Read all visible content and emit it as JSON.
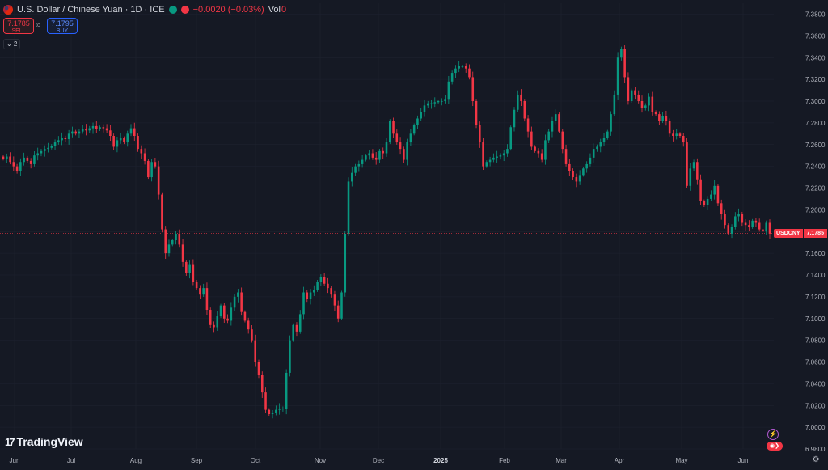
{
  "header": {
    "symbol_title": "U.S. Dollar / Chinese Yuan · 1D · ICE",
    "change": "−0.0020 (−0.03%)",
    "vol_label": "Vol",
    "vol_value": "0"
  },
  "trade": {
    "sell_price": "7.1785",
    "sell_label": "SELL",
    "spread": "to",
    "buy_price": "7.1795",
    "buy_label": "BUY"
  },
  "collapse_label": "⌄ 2",
  "logo": {
    "mark": "17",
    "text": "TradingView"
  },
  "current": {
    "symbol": "USDCNY",
    "price": "7.1785",
    "value": 7.1785
  },
  "icons": {
    "lightning": "lightning-icon",
    "replay": "replay-icon",
    "settings": "gear-icon"
  },
  "colors": {
    "up": "#089981",
    "down": "#f23645",
    "background": "#151924",
    "grid": "#1f2330"
  },
  "chart_data": {
    "type": "candlestick",
    "title": "U.S. Dollar / Chinese Yuan · 1D · ICE",
    "ylim": [
      6.98,
      7.38
    ],
    "y_ticks": [
      "7.3800",
      "7.3600",
      "7.3400",
      "7.3200",
      "7.3000",
      "7.2800",
      "7.2600",
      "7.2400",
      "7.2200",
      "7.2000",
      "7.1800",
      "7.1600",
      "7.1400",
      "7.1200",
      "7.1000",
      "7.0800",
      "7.0600",
      "7.0400",
      "7.0200",
      "7.0000",
      "6.9800"
    ],
    "x_labels": [
      "Jun",
      "Jul",
      "Aug",
      "Sep",
      "Oct",
      "Nov",
      "Dec",
      "2025",
      "Feb",
      "Mar",
      "Apr",
      "May",
      "Jun"
    ],
    "x_label_bold": "2025",
    "close_series": [
      7.247,
      7.249,
      7.244,
      7.24,
      7.236,
      7.244,
      7.248,
      7.245,
      7.242,
      7.25,
      7.252,
      7.254,
      7.256,
      7.257,
      7.259,
      7.262,
      7.264,
      7.266,
      7.265,
      7.27,
      7.272,
      7.27,
      7.272,
      7.274,
      7.273,
      7.275,
      7.277,
      7.274,
      7.276,
      7.275,
      7.273,
      7.268,
      7.258,
      7.264,
      7.266,
      7.262,
      7.27,
      7.275,
      7.268,
      7.256,
      7.252,
      7.245,
      7.23,
      7.244,
      7.24,
      7.214,
      7.182,
      7.16,
      7.168,
      7.172,
      7.178,
      7.168,
      7.152,
      7.142,
      7.15,
      7.134,
      7.128,
      7.122,
      7.128,
      7.108,
      7.094,
      7.092,
      7.102,
      7.112,
      7.1,
      7.098,
      7.11,
      7.12,
      7.124,
      7.106,
      7.098,
      7.09,
      7.08,
      7.06,
      7.048,
      7.032,
      7.016,
      7.012,
      7.013,
      7.016,
      7.017,
      7.017,
      7.05,
      7.08,
      7.094,
      7.088,
      7.104,
      7.124,
      7.118,
      7.124,
      7.126,
      7.134,
      7.138,
      7.132,
      7.128,
      7.122,
      7.112,
      7.1,
      7.124,
      7.178,
      7.226,
      7.234,
      7.24,
      7.242,
      7.246,
      7.25,
      7.252,
      7.248,
      7.246,
      7.254,
      7.252,
      7.262,
      7.282,
      7.27,
      7.262,
      7.256,
      7.246,
      7.262,
      7.27,
      7.278,
      7.284,
      7.29,
      7.296,
      7.298,
      7.298,
      7.299,
      7.3,
      7.3,
      7.302,
      7.318,
      7.326,
      7.33,
      7.332,
      7.332,
      7.33,
      7.322,
      7.3,
      7.278,
      7.262,
      7.24,
      7.244,
      7.246,
      7.248,
      7.249,
      7.25,
      7.252,
      7.256,
      7.276,
      7.292,
      7.306,
      7.3,
      7.284,
      7.272,
      7.258,
      7.254,
      7.252,
      7.246,
      7.264,
      7.272,
      7.282,
      7.288,
      7.272,
      7.256,
      7.242,
      7.236,
      7.23,
      7.226,
      7.232,
      7.238,
      7.242,
      7.248,
      7.256,
      7.258,
      7.262,
      7.266,
      7.272,
      7.288,
      7.306,
      7.34,
      7.348,
      7.322,
      7.3,
      7.31,
      7.306,
      7.3,
      7.294,
      7.296,
      7.304,
      7.29,
      7.288,
      7.282,
      7.286,
      7.282,
      7.27,
      7.268,
      7.27,
      7.268,
      7.262,
      7.222,
      7.238,
      7.244,
      7.228,
      7.208,
      7.204,
      7.21,
      7.214,
      7.222,
      7.206,
      7.196,
      7.186,
      7.178,
      7.184,
      7.194,
      7.196,
      7.188,
      7.186,
      7.184,
      7.19,
      7.188,
      7.182,
      7.18,
      7.188,
      7.178
    ]
  }
}
